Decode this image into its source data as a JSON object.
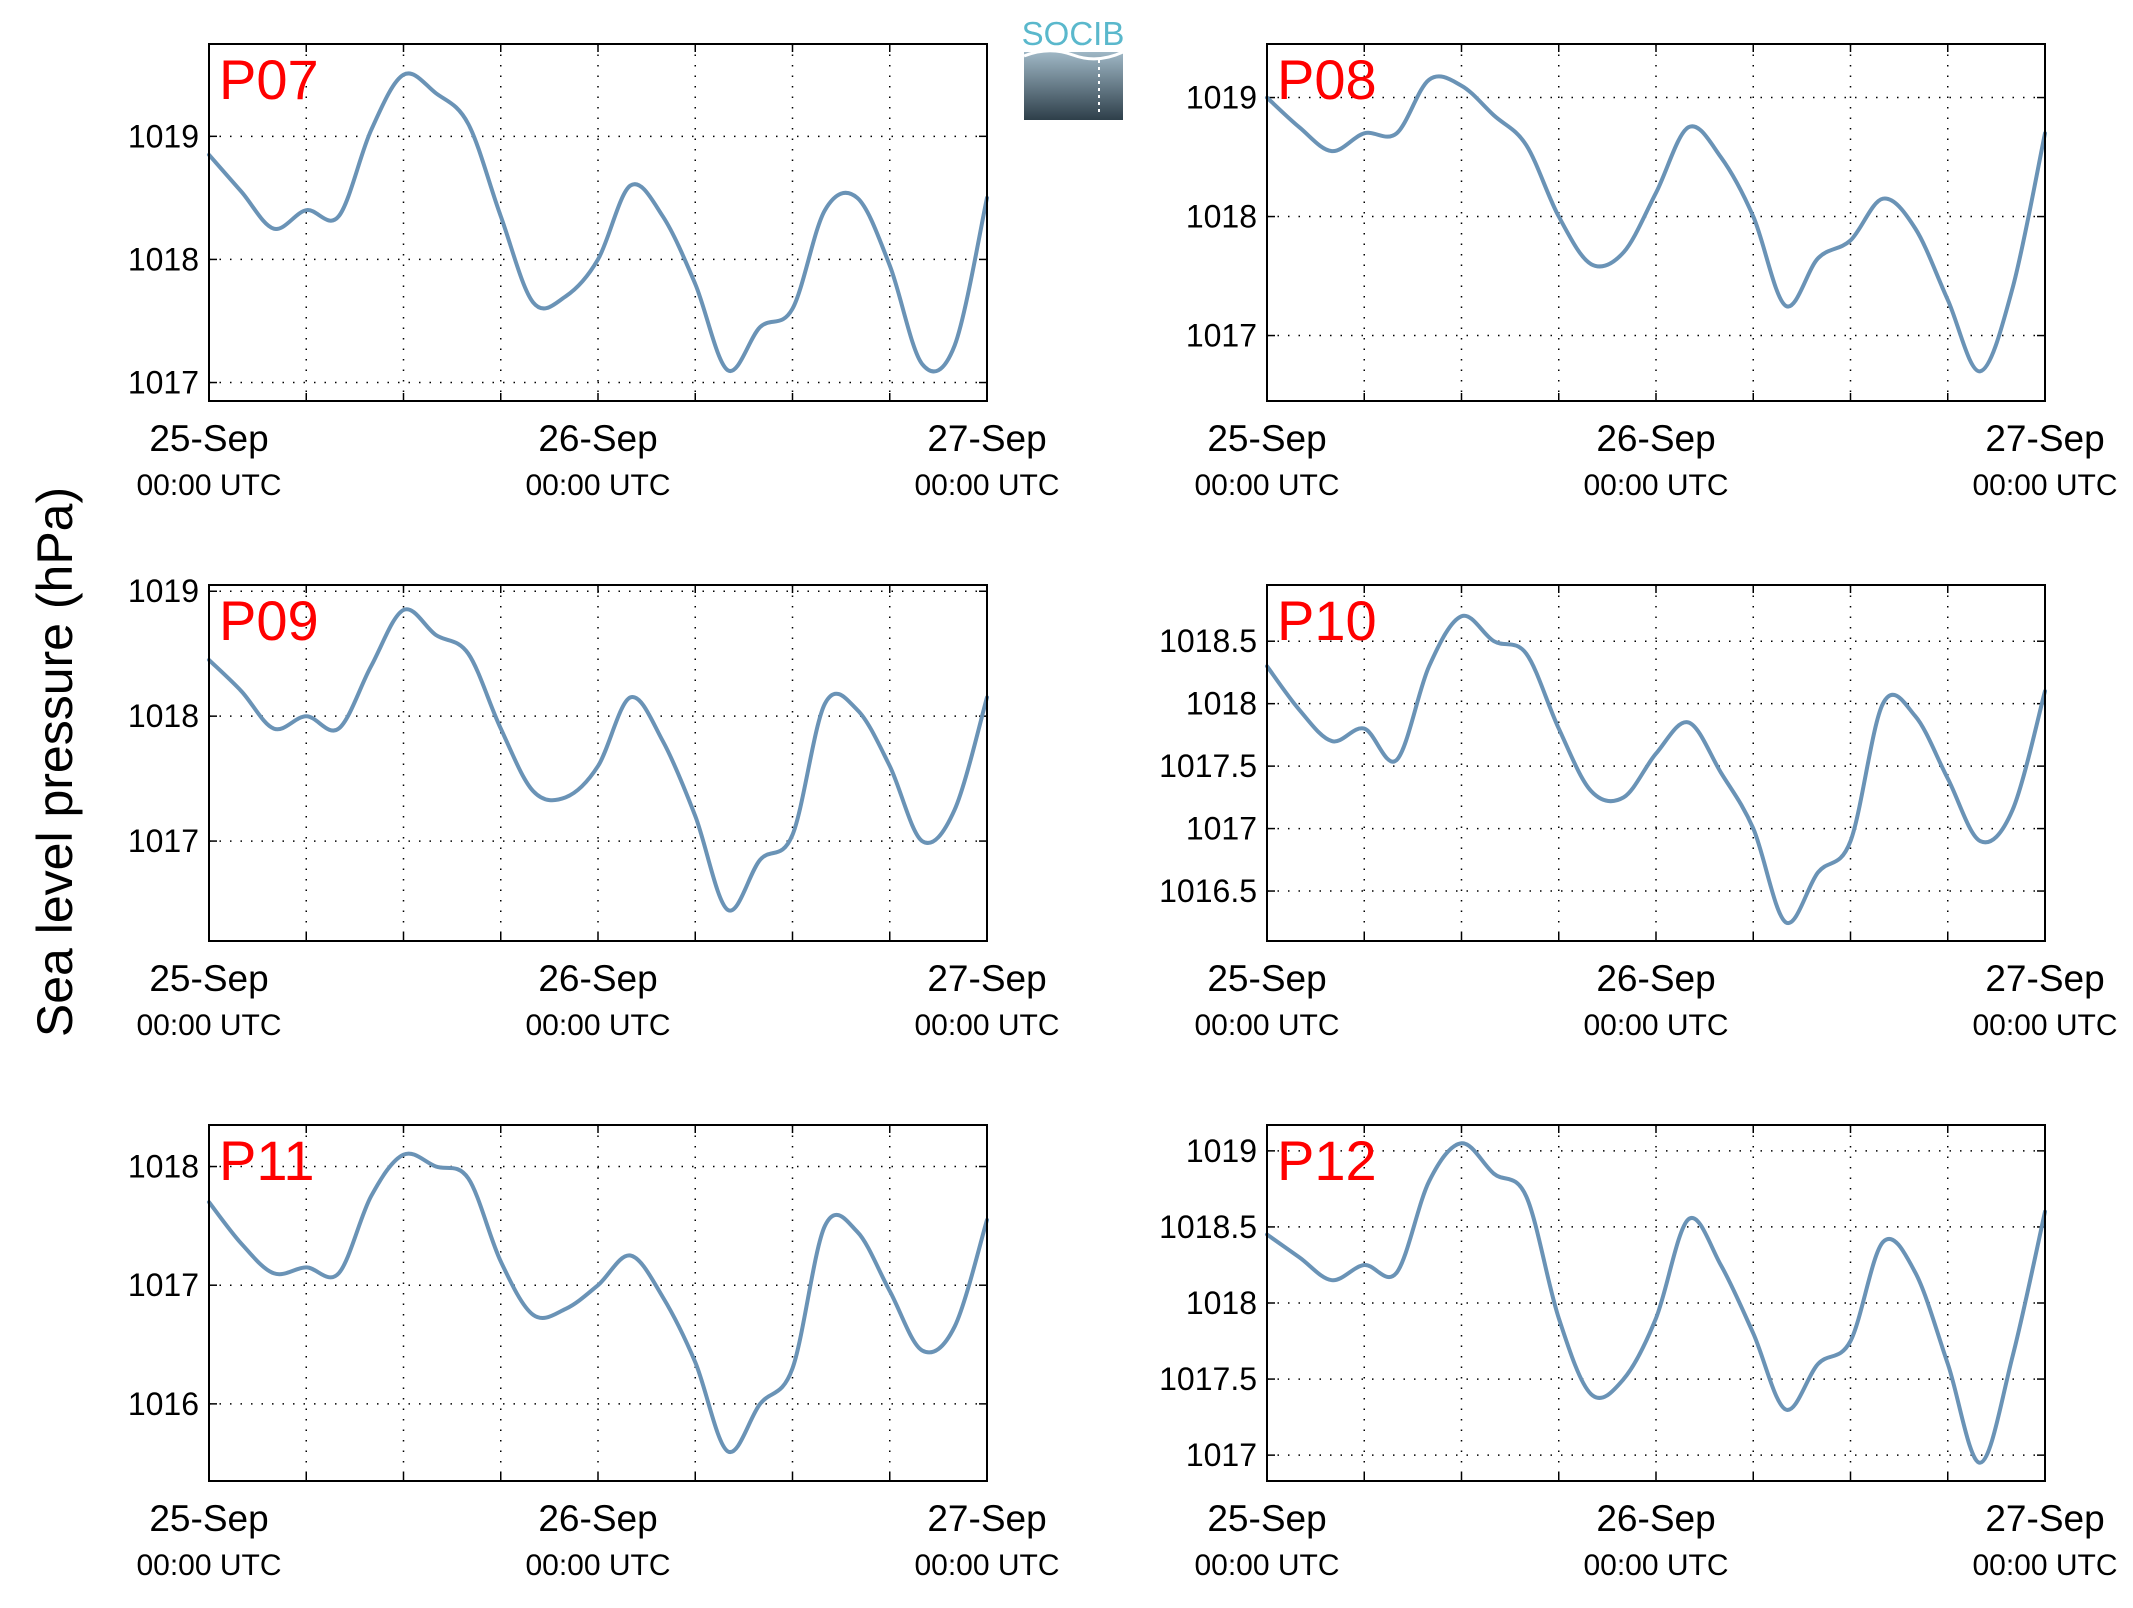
{
  "figure": {
    "ylabel": "Sea level pressure (hPa)",
    "logo_text": "SOCIB",
    "line_color": "#6a93b6",
    "panel_label_color": "#ff0000"
  },
  "chart_data": [
    {
      "type": "line",
      "panel_label": "P07",
      "xlabel": "",
      "x_ticks": [
        {
          "date": "25-Sep",
          "time": "00:00 UTC"
        },
        {
          "date": "26-Sep",
          "time": "00:00 UTC"
        },
        {
          "date": "27-Sep",
          "time": "00:00 UTC"
        }
      ],
      "xlim": [
        "2015-09-25 00:00",
        "2015-09-27 00:00"
      ],
      "ylim": [
        1016.85,
        1019.75
      ],
      "y_ticks": [
        1017,
        1018,
        1019
      ],
      "grid": true,
      "series": [
        {
          "x": [
            "25-Sep 00:00",
            "25-Sep 02:00",
            "25-Sep 04:00",
            "25-Sep 06:00",
            "25-Sep 08:00",
            "25-Sep 10:00",
            "25-Sep 12:00",
            "25-Sep 14:00",
            "25-Sep 16:00",
            "25-Sep 18:00",
            "25-Sep 20:00",
            "25-Sep 22:00",
            "26-Sep 00:00",
            "26-Sep 02:00",
            "26-Sep 04:00",
            "26-Sep 06:00",
            "26-Sep 08:00",
            "26-Sep 10:00",
            "26-Sep 12:00",
            "26-Sep 14:00",
            "26-Sep 16:00",
            "26-Sep 18:00",
            "26-Sep 20:00",
            "26-Sep 22:00",
            "27-Sep 00:00"
          ],
          "values": [
            1018.85,
            1018.55,
            1018.25,
            1018.4,
            1018.35,
            1019.05,
            1019.5,
            1019.35,
            1019.1,
            1018.35,
            1017.65,
            1017.7,
            1018.0,
            1018.6,
            1018.35,
            1017.8,
            1017.1,
            1017.45,
            1017.6,
            1018.4,
            1018.5,
            1017.95,
            1017.15,
            1017.3,
            1018.5
          ]
        }
      ]
    },
    {
      "type": "line",
      "panel_label": "P08",
      "xlabel": "",
      "x_ticks": [
        {
          "date": "25-Sep",
          "time": "00:00 UTC"
        },
        {
          "date": "26-Sep",
          "time": "00:00 UTC"
        },
        {
          "date": "27-Sep",
          "time": "00:00 UTC"
        }
      ],
      "xlim": [
        "2015-09-25 00:00",
        "2015-09-27 00:00"
      ],
      "ylim": [
        1016.45,
        1019.45
      ],
      "y_ticks": [
        1017,
        1018,
        1019
      ],
      "grid": true,
      "series": [
        {
          "x": [
            "25-Sep 00:00",
            "25-Sep 02:00",
            "25-Sep 04:00",
            "25-Sep 06:00",
            "25-Sep 08:00",
            "25-Sep 10:00",
            "25-Sep 12:00",
            "25-Sep 14:00",
            "25-Sep 16:00",
            "25-Sep 18:00",
            "25-Sep 20:00",
            "25-Sep 22:00",
            "26-Sep 00:00",
            "26-Sep 02:00",
            "26-Sep 04:00",
            "26-Sep 06:00",
            "26-Sep 08:00",
            "26-Sep 10:00",
            "26-Sep 12:00",
            "26-Sep 14:00",
            "26-Sep 16:00",
            "26-Sep 18:00",
            "26-Sep 20:00",
            "26-Sep 22:00",
            "27-Sep 00:00"
          ],
          "values": [
            1019.0,
            1018.75,
            1018.55,
            1018.7,
            1018.7,
            1019.15,
            1019.1,
            1018.85,
            1018.6,
            1018.0,
            1017.6,
            1017.7,
            1018.2,
            1018.75,
            1018.5,
            1018.0,
            1017.25,
            1017.65,
            1017.8,
            1018.15,
            1017.9,
            1017.3,
            1016.7,
            1017.4,
            1018.7
          ]
        }
      ]
    },
    {
      "type": "line",
      "panel_label": "P09",
      "xlabel": "",
      "x_ticks": [
        {
          "date": "25-Sep",
          "time": "00:00 UTC"
        },
        {
          "date": "26-Sep",
          "time": "00:00 UTC"
        },
        {
          "date": "27-Sep",
          "time": "00:00 UTC"
        }
      ],
      "xlim": [
        "2015-09-25 00:00",
        "2015-09-27 00:00"
      ],
      "ylim": [
        1016.2,
        1019.05
      ],
      "y_ticks": [
        1017,
        1018,
        1019
      ],
      "grid": true,
      "series": [
        {
          "x": [
            "25-Sep 00:00",
            "25-Sep 02:00",
            "25-Sep 04:00",
            "25-Sep 06:00",
            "25-Sep 08:00",
            "25-Sep 10:00",
            "25-Sep 12:00",
            "25-Sep 14:00",
            "25-Sep 16:00",
            "25-Sep 18:00",
            "25-Sep 20:00",
            "25-Sep 22:00",
            "26-Sep 00:00",
            "26-Sep 02:00",
            "26-Sep 04:00",
            "26-Sep 06:00",
            "26-Sep 08:00",
            "26-Sep 10:00",
            "26-Sep 12:00",
            "26-Sep 14:00",
            "26-Sep 16:00",
            "26-Sep 18:00",
            "26-Sep 20:00",
            "26-Sep 22:00",
            "27-Sep 00:00"
          ],
          "values": [
            1018.45,
            1018.2,
            1017.9,
            1018.0,
            1017.9,
            1018.4,
            1018.85,
            1018.65,
            1018.5,
            1017.9,
            1017.4,
            1017.35,
            1017.6,
            1018.15,
            1017.8,
            1017.2,
            1016.45,
            1016.85,
            1017.05,
            1018.1,
            1018.05,
            1017.6,
            1017.0,
            1017.25,
            1018.15
          ]
        }
      ]
    },
    {
      "type": "line",
      "panel_label": "P10",
      "xlabel": "",
      "x_ticks": [
        {
          "date": "25-Sep",
          "time": "00:00 UTC"
        },
        {
          "date": "26-Sep",
          "time": "00:00 UTC"
        },
        {
          "date": "27-Sep",
          "time": "00:00 UTC"
        }
      ],
      "xlim": [
        "2015-09-25 00:00",
        "2015-09-27 00:00"
      ],
      "ylim": [
        1016.1,
        1018.95
      ],
      "y_ticks": [
        1016.5,
        1017,
        1017.5,
        1018,
        1018.5
      ],
      "grid": true,
      "series": [
        {
          "x": [
            "25-Sep 00:00",
            "25-Sep 02:00",
            "25-Sep 04:00",
            "25-Sep 06:00",
            "25-Sep 08:00",
            "25-Sep 10:00",
            "25-Sep 12:00",
            "25-Sep 14:00",
            "25-Sep 16:00",
            "25-Sep 18:00",
            "25-Sep 20:00",
            "25-Sep 22:00",
            "26-Sep 00:00",
            "26-Sep 02:00",
            "26-Sep 04:00",
            "26-Sep 06:00",
            "26-Sep 08:00",
            "26-Sep 10:00",
            "26-Sep 12:00",
            "26-Sep 14:00",
            "26-Sep 16:00",
            "26-Sep 18:00",
            "26-Sep 20:00",
            "26-Sep 22:00",
            "27-Sep 00:00"
          ],
          "values": [
            1018.3,
            1017.95,
            1017.7,
            1017.8,
            1017.55,
            1018.3,
            1018.7,
            1018.5,
            1018.4,
            1017.8,
            1017.3,
            1017.25,
            1017.6,
            1017.85,
            1017.45,
            1017.0,
            1016.25,
            1016.65,
            1016.9,
            1018.0,
            1017.9,
            1017.4,
            1016.9,
            1017.15,
            1018.1
          ]
        }
      ]
    },
    {
      "type": "line",
      "panel_label": "P11",
      "xlabel": "",
      "x_ticks": [
        {
          "date": "25-Sep",
          "time": "00:00 UTC"
        },
        {
          "date": "26-Sep",
          "time": "00:00 UTC"
        },
        {
          "date": "27-Sep",
          "time": "00:00 UTC"
        }
      ],
      "xlim": [
        "2015-09-25 00:00",
        "2015-09-27 00:00"
      ],
      "ylim": [
        1015.35,
        1018.35
      ],
      "y_ticks": [
        1016,
        1017,
        1018
      ],
      "grid": true,
      "series": [
        {
          "x": [
            "25-Sep 00:00",
            "25-Sep 02:00",
            "25-Sep 04:00",
            "25-Sep 06:00",
            "25-Sep 08:00",
            "25-Sep 10:00",
            "25-Sep 12:00",
            "25-Sep 14:00",
            "25-Sep 16:00",
            "25-Sep 18:00",
            "25-Sep 20:00",
            "25-Sep 22:00",
            "26-Sep 00:00",
            "26-Sep 02:00",
            "26-Sep 04:00",
            "26-Sep 06:00",
            "26-Sep 08:00",
            "26-Sep 10:00",
            "26-Sep 12:00",
            "26-Sep 14:00",
            "26-Sep 16:00",
            "26-Sep 18:00",
            "26-Sep 20:00",
            "26-Sep 22:00",
            "27-Sep 00:00"
          ],
          "values": [
            1017.7,
            1017.35,
            1017.1,
            1017.15,
            1017.1,
            1017.75,
            1018.1,
            1018.0,
            1017.9,
            1017.2,
            1016.75,
            1016.8,
            1017.0,
            1017.25,
            1016.9,
            1016.35,
            1015.6,
            1016.0,
            1016.3,
            1017.5,
            1017.45,
            1016.95,
            1016.45,
            1016.65,
            1017.55
          ]
        }
      ]
    },
    {
      "type": "line",
      "panel_label": "P12",
      "xlabel": "",
      "x_ticks": [
        {
          "date": "25-Sep",
          "time": "00:00 UTC"
        },
        {
          "date": "26-Sep",
          "time": "00:00 UTC"
        },
        {
          "date": "27-Sep",
          "time": "00:00 UTC"
        }
      ],
      "xlim": [
        "2015-09-25 00:00",
        "2015-09-27 00:00"
      ],
      "ylim": [
        1016.83,
        1019.17
      ],
      "y_ticks": [
        1017,
        1017.5,
        1018,
        1018.5,
        1019
      ],
      "grid": true,
      "series": [
        {
          "x": [
            "25-Sep 00:00",
            "25-Sep 02:00",
            "25-Sep 04:00",
            "25-Sep 06:00",
            "25-Sep 08:00",
            "25-Sep 10:00",
            "25-Sep 12:00",
            "25-Sep 14:00",
            "25-Sep 16:00",
            "25-Sep 18:00",
            "25-Sep 20:00",
            "25-Sep 22:00",
            "26-Sep 00:00",
            "26-Sep 02:00",
            "26-Sep 04:00",
            "26-Sep 06:00",
            "26-Sep 08:00",
            "26-Sep 10:00",
            "26-Sep 12:00",
            "26-Sep 14:00",
            "26-Sep 16:00",
            "26-Sep 18:00",
            "26-Sep 20:00",
            "26-Sep 22:00",
            "27-Sep 00:00"
          ],
          "values": [
            1018.45,
            1018.3,
            1018.15,
            1018.25,
            1018.2,
            1018.8,
            1019.05,
            1018.85,
            1018.7,
            1017.9,
            1017.4,
            1017.5,
            1017.9,
            1018.55,
            1018.25,
            1017.8,
            1017.3,
            1017.6,
            1017.75,
            1018.4,
            1018.2,
            1017.6,
            1016.95,
            1017.65,
            1018.6
          ]
        }
      ]
    }
  ]
}
